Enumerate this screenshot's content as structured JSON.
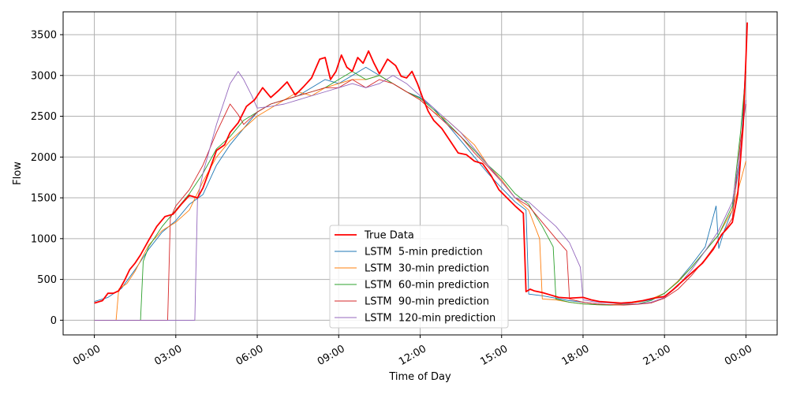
{
  "chart_data": {
    "type": "line",
    "xlabel": "Time of Day",
    "ylabel": "Flow",
    "x_unit": "hours",
    "xlim": [
      -1.15,
      25.15
    ],
    "ylim": [
      -180,
      3780
    ],
    "grid": true,
    "legend_placement": "lower center",
    "x_ticks": [
      0,
      3,
      6,
      9,
      12,
      15,
      18,
      21,
      24
    ],
    "x_tick_labels": [
      "00:00",
      "03:00",
      "06:00",
      "09:00",
      "12:00",
      "15:00",
      "18:00",
      "21:00",
      "00:00"
    ],
    "y_ticks": [
      0,
      500,
      1000,
      1500,
      2000,
      2500,
      3000,
      3500
    ],
    "y_tick_labels": [
      "0",
      "500",
      "1000",
      "1500",
      "2000",
      "2500",
      "3000",
      "3500"
    ],
    "series": [
      {
        "name": "True Data",
        "color": "#ff0000",
        "width": 1.8,
        "x": [
          0,
          0.1,
          0.3,
          0.5,
          0.7,
          0.9,
          1.1,
          1.3,
          1.5,
          1.7,
          2,
          2.3,
          2.6,
          2.9,
          3.2,
          3.5,
          3.8,
          4,
          4.2,
          4.5,
          4.8,
          5,
          5.3,
          5.6,
          5.9,
          6.2,
          6.5,
          6.8,
          7.1,
          7.4,
          7.7,
          8,
          8.3,
          8.5,
          8.7,
          8.9,
          9.1,
          9.3,
          9.5,
          9.7,
          9.9,
          10.1,
          10.3,
          10.5,
          10.8,
          11.1,
          11.3,
          11.5,
          11.7,
          11.9,
          12.1,
          12.3,
          12.5,
          12.8,
          13.1,
          13.4,
          13.7,
          14,
          14.3,
          14.6,
          14.9,
          15.2,
          15.5,
          15.8,
          15.9,
          16.05,
          16.2,
          16.5,
          16.8,
          17.1,
          17.5,
          18,
          18.3,
          18.6,
          19,
          19.4,
          19.8,
          20.2,
          20.6,
          21,
          21.3,
          21.6,
          22,
          22.4,
          22.8,
          23.1,
          23.3,
          23.5,
          23.7,
          23.9,
          24,
          24.05
        ],
        "values": [
          210,
          220,
          240,
          330,
          330,
          360,
          480,
          620,
          700,
          800,
          980,
          1150,
          1270,
          1300,
          1420,
          1530,
          1500,
          1620,
          1800,
          2080,
          2150,
          2300,
          2420,
          2620,
          2700,
          2850,
          2730,
          2820,
          2920,
          2760,
          2860,
          2970,
          3200,
          3220,
          2950,
          3050,
          3250,
          3100,
          3050,
          3220,
          3150,
          3300,
          3150,
          3020,
          3200,
          3120,
          2990,
          2970,
          3050,
          2900,
          2720,
          2560,
          2450,
          2350,
          2200,
          2050,
          2030,
          1950,
          1920,
          1780,
          1600,
          1500,
          1400,
          1310,
          350,
          380,
          360,
          340,
          310,
          280,
          270,
          280,
          250,
          230,
          220,
          210,
          220,
          240,
          270,
          290,
          370,
          460,
          580,
          700,
          870,
          1050,
          1120,
          1200,
          1550,
          2400,
          3200,
          3650
        ]
      },
      {
        "name": "LSTM  5-min prediction",
        "color": "#1f77b4",
        "width": 0.9,
        "x": [
          0,
          0.5,
          1,
          1.5,
          2,
          2.5,
          3,
          3.5,
          4,
          4.5,
          5,
          5.5,
          6,
          6.5,
          7,
          7.5,
          8,
          8.5,
          9,
          9.5,
          10,
          10.5,
          11,
          11.5,
          12,
          12.5,
          13,
          13.5,
          14,
          14.5,
          15,
          15.5,
          15.9,
          16,
          16.5,
          17,
          17.5,
          18,
          18.5,
          19,
          19.5,
          20,
          20.5,
          21,
          21.5,
          22,
          22.5,
          22.9,
          23,
          23.2,
          23.5,
          23.8,
          24
        ],
        "values": [
          230,
          280,
          390,
          620,
          870,
          1080,
          1220,
          1420,
          1540,
          1900,
          2150,
          2350,
          2550,
          2650,
          2700,
          2750,
          2850,
          2950,
          2900,
          3000,
          3100,
          3000,
          2900,
          2800,
          2730,
          2600,
          2400,
          2200,
          2000,
          1800,
          1620,
          1450,
          1350,
          320,
          300,
          270,
          240,
          220,
          200,
          190,
          200,
          220,
          250,
          330,
          480,
          680,
          900,
          1400,
          880,
          1100,
          1350,
          2000,
          3200
        ]
      },
      {
        "name": "LSTM  30-min prediction",
        "color": "#ff7f0e",
        "width": 0.9,
        "x": [
          0,
          0.8,
          0.9,
          1.2,
          1.5,
          2,
          2.5,
          3,
          3.5,
          4,
          4.5,
          5,
          5.5,
          6,
          6.5,
          7,
          7.5,
          8,
          8.5,
          9,
          9.5,
          10,
          10.5,
          11,
          11.5,
          12,
          12.5,
          13,
          13.5,
          14,
          14.5,
          15,
          15.5,
          16,
          16.4,
          16.5,
          17,
          17.5,
          18,
          18.5,
          19,
          19.5,
          20,
          20.5,
          21,
          21.5,
          22,
          22.5,
          23,
          23.5,
          23.8,
          24
        ],
        "values": [
          0,
          0,
          380,
          450,
          600,
          920,
          1100,
          1200,
          1350,
          1700,
          2000,
          2200,
          2350,
          2500,
          2600,
          2700,
          2800,
          2750,
          2850,
          2900,
          2950,
          2950,
          3000,
          2900,
          2800,
          2700,
          2550,
          2450,
          2300,
          2150,
          1900,
          1720,
          1500,
          1350,
          1000,
          260,
          250,
          220,
          200,
          190,
          190,
          200,
          220,
          260,
          330,
          480,
          650,
          850,
          1050,
          1350,
          1700,
          1950
        ]
      },
      {
        "name": "LSTM  60-min prediction",
        "color": "#2ca02c",
        "width": 0.9,
        "x": [
          0,
          1.7,
          1.8,
          2,
          2.5,
          3,
          3.5,
          4,
          4.5,
          5,
          5.5,
          6,
          6.5,
          7,
          7.5,
          8,
          8.5,
          9,
          9.5,
          10,
          10.5,
          11,
          11.5,
          12,
          12.5,
          13,
          13.5,
          14,
          14.5,
          15,
          15.5,
          16,
          16.5,
          16.9,
          17,
          17.5,
          18,
          18.5,
          19,
          19.5,
          20,
          20.5,
          21,
          21.5,
          22,
          22.5,
          23,
          23.5,
          23.8,
          24
        ],
        "values": [
          0,
          0,
          720,
          900,
          1150,
          1350,
          1550,
          1800,
          2100,
          2250,
          2450,
          2550,
          2650,
          2700,
          2750,
          2800,
          2850,
          2950,
          3050,
          2950,
          3000,
          2900,
          2800,
          2720,
          2580,
          2420,
          2250,
          2080,
          1900,
          1750,
          1550,
          1420,
          1150,
          900,
          260,
          220,
          200,
          190,
          185,
          190,
          200,
          240,
          330,
          470,
          650,
          850,
          1050,
          1400,
          2300,
          3050
        ]
      },
      {
        "name": "LSTM  90-min prediction",
        "color": "#d62728",
        "width": 0.9,
        "x": [
          0,
          2.7,
          2.8,
          3,
          3.5,
          4,
          4.5,
          5,
          5.3,
          5.5,
          6,
          6.5,
          7,
          7.5,
          8,
          8.5,
          9,
          9.5,
          10,
          10.5,
          11,
          11.5,
          12,
          12.5,
          13,
          13.5,
          14,
          14.5,
          15,
          15.5,
          16,
          16.5,
          17,
          17.4,
          17.5,
          18,
          18.5,
          19,
          19.5,
          20,
          20.5,
          21,
          21.5,
          22,
          22.5,
          23,
          23.5,
          23.8,
          24
        ],
        "values": [
          0,
          0,
          1250,
          1400,
          1600,
          1900,
          2300,
          2650,
          2520,
          2400,
          2550,
          2650,
          2700,
          2750,
          2800,
          2850,
          2850,
          2950,
          2850,
          2950,
          2900,
          2800,
          2700,
          2550,
          2400,
          2250,
          2050,
          1880,
          1700,
          1500,
          1400,
          1200,
          1000,
          850,
          260,
          220,
          200,
          190,
          185,
          195,
          210,
          270,
          380,
          550,
          750,
          980,
          1250,
          2200,
          2650
        ]
      },
      {
        "name": "LSTM  120-min prediction",
        "color": "#9467bd",
        "width": 0.9,
        "x": [
          0,
          3.7,
          3.8,
          4,
          4.5,
          5,
          5.3,
          5.5,
          5.8,
          6,
          6.5,
          7,
          7.5,
          8,
          8.5,
          9,
          9.5,
          10,
          10.5,
          11,
          11.5,
          12,
          12.5,
          13,
          13.5,
          14,
          14.5,
          15,
          15.5,
          16,
          16.5,
          17,
          17.5,
          17.9,
          18,
          18.5,
          19,
          19.5,
          20,
          20.5,
          21,
          21.5,
          22,
          22.5,
          23,
          23.5,
          23.8,
          24
        ],
        "values": [
          0,
          0,
          1480,
          1800,
          2400,
          2900,
          3050,
          2950,
          2750,
          2600,
          2620,
          2650,
          2700,
          2750,
          2800,
          2850,
          2900,
          2850,
          2900,
          3000,
          2900,
          2750,
          2600,
          2450,
          2300,
          2100,
          1900,
          1700,
          1500,
          1450,
          1300,
          1150,
          950,
          650,
          250,
          220,
          210,
          200,
          200,
          220,
          280,
          420,
          620,
          850,
          1100,
          1450,
          2100,
          2700
        ]
      }
    ]
  }
}
